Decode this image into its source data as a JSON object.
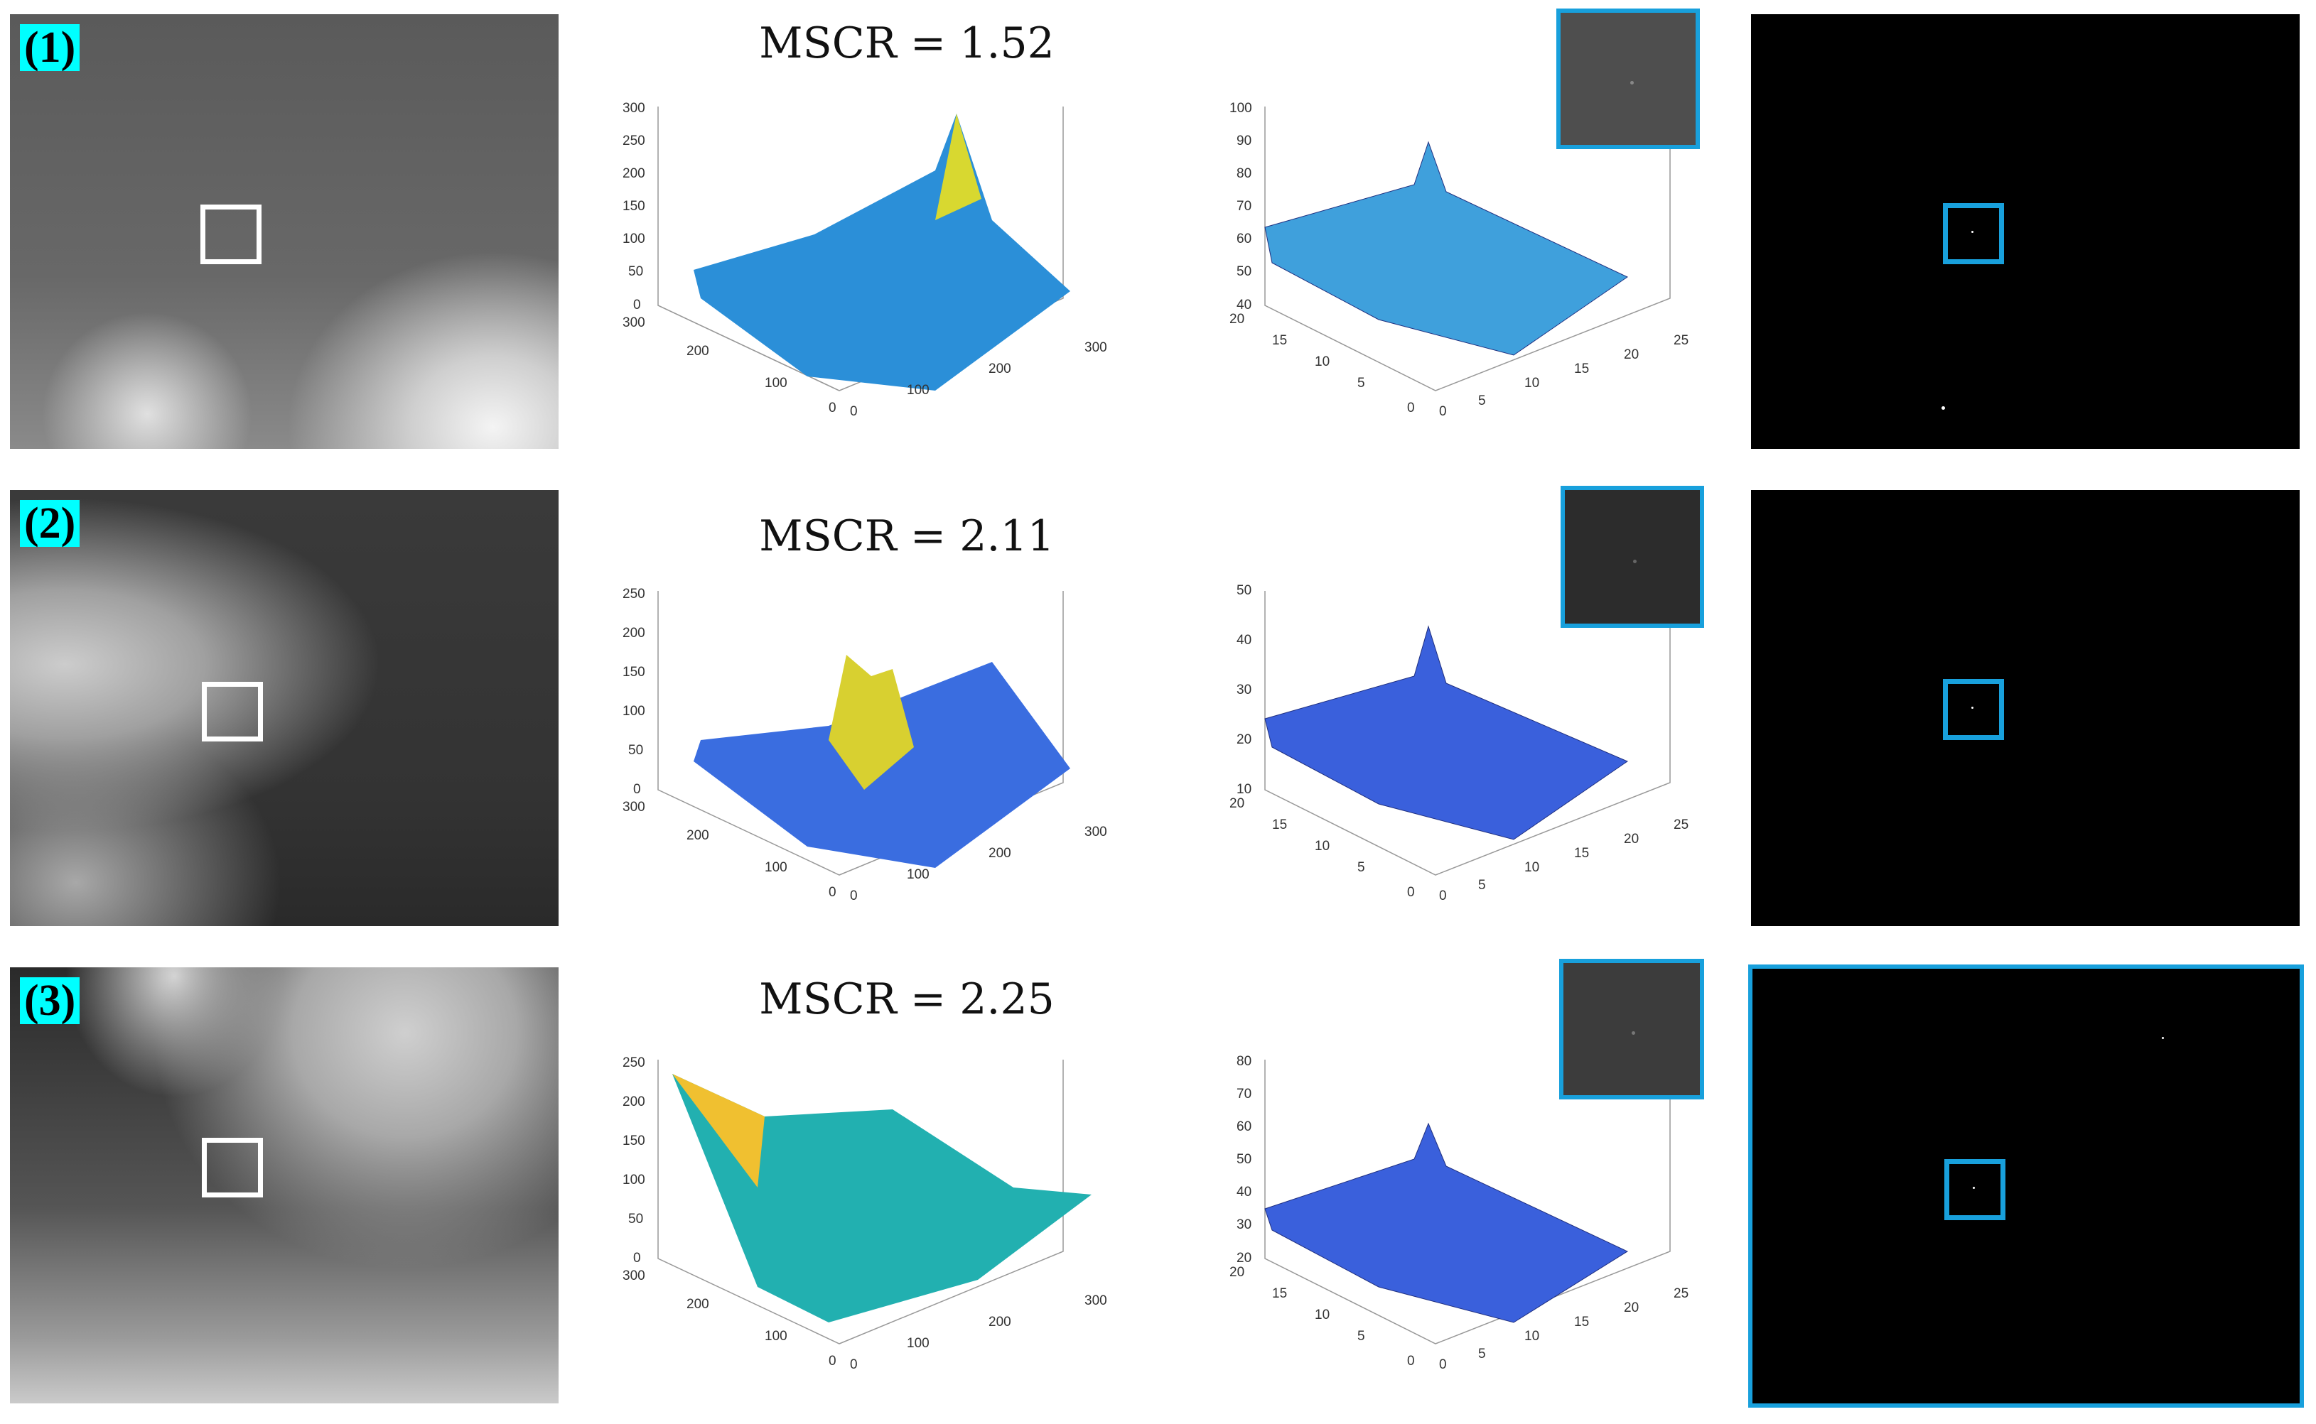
{
  "rows": [
    {
      "label": "(1)",
      "mscr": "MSCR = 1.52"
    },
    {
      "label": "(2)",
      "mscr": "MSCR = 2.11"
    },
    {
      "label": "(3)",
      "mscr": "MSCR = 2.25"
    }
  ],
  "surface_axes": [
    {
      "z_ticks": [
        "0",
        "50",
        "100",
        "150",
        "200",
        "250",
        "300"
      ],
      "x_ticks": [
        "0",
        "100",
        "200",
        "300"
      ],
      "y_ticks": [
        "0",
        "100",
        "200",
        "300"
      ]
    },
    {
      "z_ticks": [
        "0",
        "50",
        "100",
        "150",
        "200",
        "250"
      ],
      "x_ticks": [
        "0",
        "100",
        "200",
        "300"
      ],
      "y_ticks": [
        "0",
        "100",
        "200",
        "300"
      ]
    },
    {
      "z_ticks": [
        "0",
        "50",
        "100",
        "150",
        "200",
        "250"
      ],
      "x_ticks": [
        "0",
        "100",
        "200",
        "300"
      ],
      "y_ticks": [
        "0",
        "100",
        "200",
        "300"
      ]
    }
  ],
  "local_axes": [
    {
      "z_ticks": [
        "40",
        "50",
        "60",
        "70",
        "80",
        "90",
        "100"
      ],
      "x_ticks": [
        "0",
        "5",
        "10",
        "15",
        "20",
        "25"
      ],
      "y_ticks": [
        "0",
        "5",
        "10",
        "15",
        "20"
      ]
    },
    {
      "z_ticks": [
        "10",
        "20",
        "30",
        "40",
        "50"
      ],
      "x_ticks": [
        "0",
        "5",
        "10",
        "15",
        "20",
        "25"
      ],
      "y_ticks": [
        "0",
        "5",
        "10",
        "15",
        "20"
      ]
    },
    {
      "z_ticks": [
        "20",
        "30",
        "40",
        "50",
        "60",
        "70",
        "80"
      ],
      "x_ticks": [
        "0",
        "5",
        "10",
        "15",
        "20",
        "25"
      ],
      "y_ticks": [
        "0",
        "5",
        "10",
        "15",
        "20"
      ]
    }
  ],
  "colors": {
    "label_bg": "#00ffff",
    "highlight": "#18a0dc",
    "surface_low": "#3b3fd8",
    "surface_mid": "#1fb5b5",
    "surface_high": "#f2e020"
  }
}
